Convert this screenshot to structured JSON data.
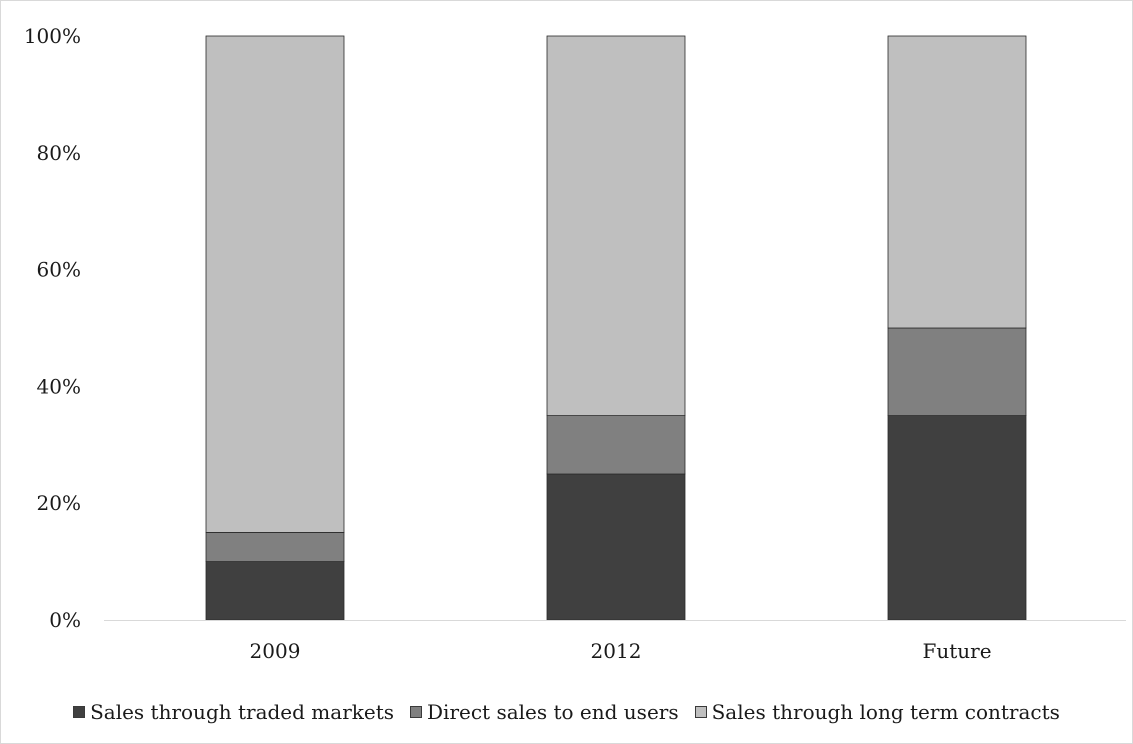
{
  "chart_data": {
    "type": "bar",
    "stacked": true,
    "categories": [
      "2009",
      "2012",
      "Future"
    ],
    "series": [
      {
        "name": "Sales through traded markets",
        "values": [
          10,
          25,
          35
        ],
        "color": "#404040"
      },
      {
        "name": "Direct sales to end users",
        "values": [
          5,
          10,
          15
        ],
        "color": "#808080"
      },
      {
        "name": "Sales through long term contracts",
        "values": [
          85,
          65,
          50
        ],
        "color": "#bfbfbf"
      }
    ],
    "ylim": [
      0,
      100
    ],
    "yticks": [
      "0%",
      "20%",
      "40%",
      "60%",
      "80%",
      "100%"
    ],
    "grid": false,
    "legend_position": "bottom"
  }
}
